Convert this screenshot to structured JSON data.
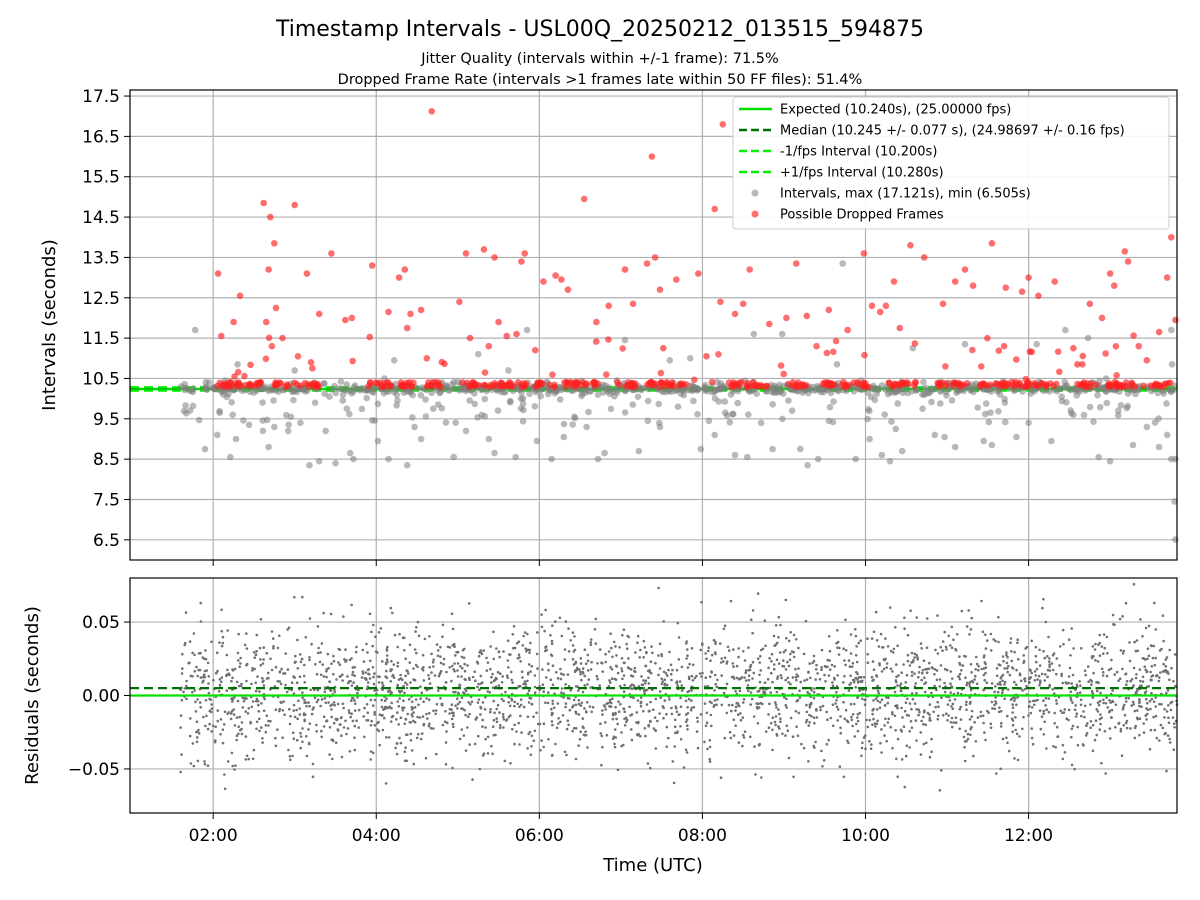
{
  "chart_data": [
    {
      "type": "scatter",
      "title": "Timestamp Intervals - USL00Q_20250212_013515_594875",
      "subtitle_lines": [
        "Jitter Quality (intervals within +/-1 frame): 71.5%",
        "Dropped Frame Rate (intervals >1 frames late within 50 FF files): 51.4%"
      ],
      "xlabel": "",
      "ylabel": "Intervals (seconds)",
      "x_unit": "hours_utc",
      "xlim": [
        0.98,
        13.82
      ],
      "ylim": [
        6.0,
        17.65
      ],
      "y_ticks": [
        6.5,
        7.5,
        8.5,
        9.5,
        10.5,
        11.5,
        12.5,
        13.5,
        14.5,
        15.5,
        16.5,
        17.5
      ],
      "y_tick_labels": [
        "6.5",
        "7.5",
        "8.5",
        "9.5",
        "10.5",
        "11.5",
        "12.5",
        "13.5",
        "14.5",
        "15.5",
        "16.5",
        "17.5"
      ],
      "x_ticks": [
        2,
        4,
        6,
        8,
        10,
        12
      ],
      "grid": true,
      "legend_position": "top-right",
      "lines": [
        {
          "name": "Expected (10.240s), (25.00000 fps)",
          "y": 10.24,
          "color": "#00e000",
          "style": "solid"
        },
        {
          "name": "Median (10.245 +/- 0.077 s), (24.98697 +/- 0.16 fps)",
          "y": 10.245,
          "color": "#007000",
          "style": "dashed"
        },
        {
          "name": "-1/fps Interval (10.200s)",
          "y": 10.2,
          "color": "#00ee00",
          "style": "dashed"
        },
        {
          "name": "+1/fps Interval (10.280s)",
          "y": 10.28,
          "color": "#00ee00",
          "style": "dashed"
        }
      ],
      "series": [
        {
          "name": "Intervals, max (17.121s), min (6.505s)",
          "color": "#808080",
          "points": [
            [
              1.78,
              11.7
            ],
            [
              1.9,
              8.75
            ],
            [
              2.05,
              9.1
            ],
            [
              2.08,
              9.65
            ],
            [
              2.21,
              8.55
            ],
            [
              2.24,
              9.6
            ],
            [
              2.28,
              9.0
            ],
            [
              2.3,
              10.85
            ],
            [
              2.44,
              9.35
            ],
            [
              2.61,
              9.2
            ],
            [
              2.68,
              8.8
            ],
            [
              2.75,
              9.3
            ],
            [
              2.92,
              9.2
            ],
            [
              3.0,
              10.7
            ],
            [
              3.07,
              9.4
            ],
            [
              3.18,
              8.35
            ],
            [
              3.3,
              8.45
            ],
            [
              3.38,
              9.2
            ],
            [
              3.5,
              8.4
            ],
            [
              3.68,
              8.65
            ],
            [
              3.72,
              8.5
            ],
            [
              4.02,
              8.95
            ],
            [
              4.15,
              8.5
            ],
            [
              4.22,
              10.95
            ],
            [
              4.38,
              8.35
            ],
            [
              4.47,
              9.3
            ],
            [
              4.55,
              9.0
            ],
            [
              4.7,
              9.75
            ],
            [
              4.95,
              8.55
            ],
            [
              5.1,
              9.2
            ],
            [
              5.25,
              11.1
            ],
            [
              5.38,
              9.0
            ],
            [
              5.45,
              8.65
            ],
            [
              5.62,
              10.7
            ],
            [
              5.71,
              8.55
            ],
            [
              5.85,
              11.7
            ],
            [
              5.97,
              8.95
            ],
            [
              6.15,
              8.5
            ],
            [
              6.3,
              9.05
            ],
            [
              6.43,
              9.55
            ],
            [
              6.58,
              9.3
            ],
            [
              6.72,
              8.5
            ],
            [
              6.8,
              8.65
            ],
            [
              7.05,
              11.45
            ],
            [
              7.22,
              8.7
            ],
            [
              7.33,
              9.45
            ],
            [
              7.48,
              9.3
            ],
            [
              7.6,
              10.95
            ],
            [
              7.7,
              9.8
            ],
            [
              7.85,
              11.0
            ],
            [
              7.98,
              8.75
            ],
            [
              8.15,
              9.1
            ],
            [
              8.28,
              9.65
            ],
            [
              8.4,
              8.6
            ],
            [
              8.55,
              8.55
            ],
            [
              8.63,
              11.6
            ],
            [
              8.72,
              9.4
            ],
            [
              8.86,
              8.75
            ],
            [
              8.98,
              11.6
            ],
            [
              9.1,
              9.7
            ],
            [
              9.2,
              8.75
            ],
            [
              9.29,
              8.35
            ],
            [
              9.42,
              8.5
            ],
            [
              9.55,
              9.45
            ],
            [
              9.65,
              10.85
            ],
            [
              9.72,
              13.35
            ],
            [
              9.88,
              8.5
            ],
            [
              10.05,
              9.0
            ],
            [
              10.2,
              8.6
            ],
            [
              10.3,
              8.45
            ],
            [
              10.37,
              9.25
            ],
            [
              10.45,
              8.7
            ],
            [
              10.58,
              11.25
            ],
            [
              10.7,
              9.75
            ],
            [
              10.85,
              9.1
            ],
            [
              10.97,
              9.05
            ],
            [
              11.1,
              8.8
            ],
            [
              11.22,
              11.35
            ],
            [
              11.3,
              10.35
            ],
            [
              11.45,
              8.95
            ],
            [
              11.55,
              8.85
            ],
            [
              11.71,
              9.9
            ],
            [
              11.85,
              9.05
            ],
            [
              12.0,
              9.4
            ],
            [
              12.1,
              11.35
            ],
            [
              12.28,
              8.95
            ],
            [
              12.45,
              11.7
            ],
            [
              12.55,
              9.6
            ],
            [
              12.73,
              11.5
            ],
            [
              12.86,
              8.55
            ],
            [
              13.0,
              8.45
            ],
            [
              13.1,
              9.7
            ],
            [
              13.28,
              8.85
            ],
            [
              13.45,
              9.3
            ],
            [
              13.6,
              8.8
            ],
            [
              13.7,
              9.1
            ],
            [
              13.75,
              8.5
            ],
            [
              13.79,
              7.45
            ],
            [
              13.8,
              6.505
            ],
            [
              13.76,
              10.85
            ],
            [
              13.8,
              8.5
            ],
            [
              13.75,
              11.7
            ],
            [
              1.95,
              10.4
            ],
            [
              2.5,
              10.15
            ],
            [
              3.25,
              9.9
            ],
            [
              4.1,
              10.5
            ],
            [
              5.8,
              10.0
            ],
            [
              6.95,
              10.45
            ],
            [
              8.35,
              10.1
            ],
            [
              9.95,
              10.45
            ],
            [
              11.65,
              10.1
            ],
            [
              12.95,
              10.5
            ]
          ]
        },
        {
          "name": "Possible Dropped Frames",
          "color": "#ff2020",
          "points": [
            [
              2.06,
              13.1
            ],
            [
              2.1,
              11.55
            ],
            [
              2.25,
              11.9
            ],
            [
              2.33,
              12.55
            ],
            [
              2.62,
              14.85
            ],
            [
              2.7,
              14.5
            ],
            [
              2.75,
              13.85
            ],
            [
              2.68,
              13.2
            ],
            [
              2.77,
              12.25
            ],
            [
              2.65,
              11.9
            ],
            [
              2.85,
              11.5
            ],
            [
              2.72,
              11.3
            ],
            [
              3.0,
              14.8
            ],
            [
              3.04,
              11.05
            ],
            [
              3.15,
              13.1
            ],
            [
              3.2,
              10.9
            ],
            [
              3.3,
              12.1
            ],
            [
              3.45,
              13.6
            ],
            [
              3.62,
              11.95
            ],
            [
              3.7,
              12.0
            ],
            [
              3.95,
              13.3
            ],
            [
              4.15,
              12.15
            ],
            [
              4.28,
              13.0
            ],
            [
              4.35,
              13.2
            ],
            [
              4.38,
              11.75
            ],
            [
              4.42,
              12.1
            ],
            [
              4.55,
              12.2
            ],
            [
              4.62,
              11.0
            ],
            [
              4.68,
              17.121
            ],
            [
              5.02,
              12.4
            ],
            [
              5.1,
              13.6
            ],
            [
              5.15,
              11.5
            ],
            [
              5.32,
              13.7
            ],
            [
              5.38,
              11.3
            ],
            [
              5.45,
              13.5
            ],
            [
              5.5,
              11.9
            ],
            [
              5.6,
              11.55
            ],
            [
              5.72,
              11.6
            ],
            [
              5.78,
              13.4
            ],
            [
              5.82,
              13.6
            ],
            [
              5.95,
              11.2
            ],
            [
              6.05,
              12.9
            ],
            [
              6.2,
              13.05
            ],
            [
              6.27,
              12.95
            ],
            [
              6.35,
              12.7
            ],
            [
              6.55,
              14.95
            ],
            [
              6.7,
              11.9
            ],
            [
              6.85,
              12.3
            ],
            [
              7.05,
              13.2
            ],
            [
              7.15,
              12.35
            ],
            [
              7.32,
              13.35
            ],
            [
              7.38,
              16.0
            ],
            [
              7.42,
              13.5
            ],
            [
              7.48,
              12.7
            ],
            [
              7.52,
              11.25
            ],
            [
              7.68,
              12.95
            ],
            [
              7.95,
              13.1
            ],
            [
              8.05,
              11.05
            ],
            [
              8.15,
              14.7
            ],
            [
              8.25,
              16.8
            ],
            [
              8.22,
              12.4
            ],
            [
              8.4,
              12.1
            ],
            [
              8.5,
              12.35
            ],
            [
              8.58,
              13.2
            ],
            [
              8.82,
              11.85
            ],
            [
              9.03,
              12.0
            ],
            [
              9.15,
              13.35
            ],
            [
              9.28,
              12.05
            ],
            [
              9.4,
              11.3
            ],
            [
              9.55,
              12.2
            ],
            [
              9.78,
              11.7
            ],
            [
              9.98,
              13.6
            ],
            [
              10.08,
              12.3
            ],
            [
              10.18,
              12.15
            ],
            [
              10.25,
              12.3
            ],
            [
              10.35,
              12.9
            ],
            [
              10.42,
              11.75
            ],
            [
              10.55,
              13.8
            ],
            [
              10.72,
              13.5
            ],
            [
              10.95,
              12.35
            ],
            [
              10.98,
              10.8
            ],
            [
              11.22,
              13.2
            ],
            [
              11.1,
              12.9
            ],
            [
              11.32,
              12.8
            ],
            [
              11.42,
              10.8
            ],
            [
              11.55,
              13.85
            ],
            [
              11.7,
              11.3
            ],
            [
              11.72,
              12.75
            ],
            [
              11.92,
              12.65
            ],
            [
              12.0,
              13.0
            ],
            [
              12.12,
              12.55
            ],
            [
              12.32,
              12.9
            ],
            [
              12.55,
              11.25
            ],
            [
              12.75,
              12.35
            ],
            [
              12.9,
              12.0
            ],
            [
              13.0,
              13.1
            ],
            [
              13.05,
              12.8
            ],
            [
              13.18,
              13.65
            ],
            [
              13.22,
              13.4
            ],
            [
              13.35,
              11.3
            ],
            [
              13.45,
              10.95
            ],
            [
              13.6,
              11.65
            ],
            [
              13.7,
              13.0
            ],
            [
              13.75,
              14.0
            ],
            [
              13.8,
              11.95
            ]
          ]
        }
      ]
    },
    {
      "type": "scatter",
      "title": "",
      "xlabel": "Time (UTC)",
      "ylabel": "Residuals (seconds)",
      "x_unit": "hours_utc",
      "xlim": [
        0.98,
        13.82
      ],
      "ylim": [
        -0.08,
        0.08
      ],
      "y_ticks": [
        -0.05,
        0.0,
        0.05
      ],
      "y_tick_labels": [
        "−0.05",
        "0.00",
        "0.05"
      ],
      "x_ticks": [
        2,
        4,
        6,
        8,
        10,
        12
      ],
      "x_tick_labels": [
        "02:00",
        "04:00",
        "06:00",
        "08:00",
        "10:00",
        "12:00"
      ],
      "grid": true,
      "lines": [
        {
          "y": 0.0,
          "color": "#00e000",
          "style": "solid"
        },
        {
          "y": 0.005,
          "color": "#007000",
          "style": "dashed"
        }
      ],
      "series": [
        {
          "color": "#707070",
          "x_range": [
            1.6,
            13.82
          ],
          "x_start_hour": 1.6,
          "x_end_hour": 13.82,
          "std_dev": 0.022,
          "count": 3000
        }
      ]
    }
  ],
  "colors": {
    "expected_line": "#00e000",
    "median_line": "#007000",
    "fps_interval": "#00ee00",
    "intervals": "#808080",
    "dropped": "#ff2020"
  }
}
